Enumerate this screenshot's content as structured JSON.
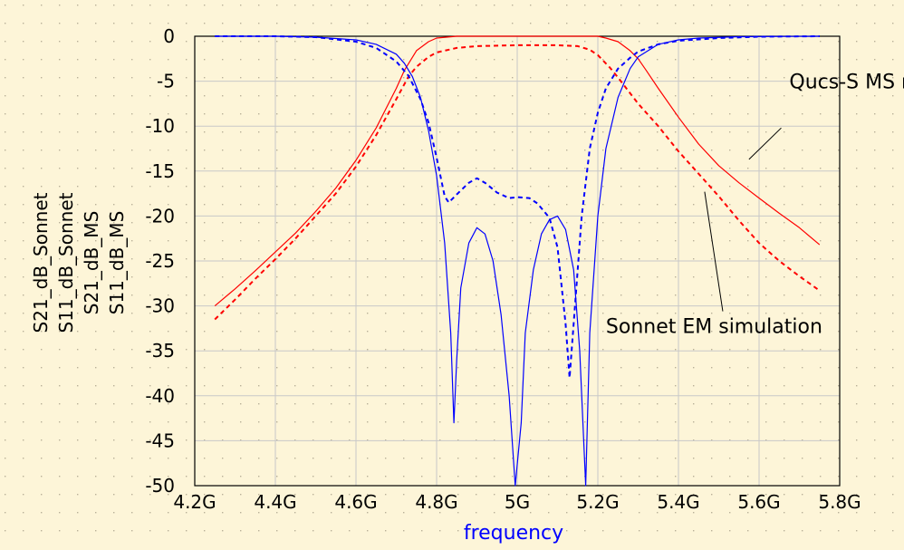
{
  "chart_data": {
    "type": "line",
    "title": "",
    "xlabel": "frequency",
    "ylabels": [
      {
        "text": "S21_dB_Sonnet",
        "color": "#ff0000"
      },
      {
        "text": "S11_dB_Sonnet",
        "color": "#0000ff"
      },
      {
        "text": "S21_dB_MS",
        "color": "#ff0000"
      },
      {
        "text": "S11_dB_MS",
        "color": "#0000ff"
      }
    ],
    "xlim": [
      4.2,
      5.8
    ],
    "ylim": [
      -50,
      0
    ],
    "grid": true,
    "background": "#fdf5d8",
    "x_ticks": [
      {
        "value": 4.2,
        "label": "4.2G"
      },
      {
        "value": 4.4,
        "label": "4.4G"
      },
      {
        "value": 4.6,
        "label": "4.6G"
      },
      {
        "value": 4.8,
        "label": "4.8G"
      },
      {
        "value": 5.0,
        "label": "5G"
      },
      {
        "value": 5.2,
        "label": "5.2G"
      },
      {
        "value": 5.4,
        "label": "5.4G"
      },
      {
        "value": 5.6,
        "label": "5.6G"
      },
      {
        "value": 5.8,
        "label": "5.8G"
      }
    ],
    "y_ticks": [
      {
        "value": 0,
        "label": "0"
      },
      {
        "value": -5,
        "label": "-5"
      },
      {
        "value": -10,
        "label": "-10"
      },
      {
        "value": -15,
        "label": "-15"
      },
      {
        "value": -20,
        "label": "-20"
      },
      {
        "value": -25,
        "label": "-25"
      },
      {
        "value": -30,
        "label": "-30"
      },
      {
        "value": -35,
        "label": "-35"
      },
      {
        "value": -40,
        "label": "-40"
      },
      {
        "value": -45,
        "label": "-45"
      },
      {
        "value": -50,
        "label": "-50"
      }
    ],
    "series": [
      {
        "name": "S21_dB_MS",
        "color": "#ff0000",
        "dashed": false,
        "points": [
          [
            4.25,
            -30.0
          ],
          [
            4.3,
            -28.1
          ],
          [
            4.35,
            -26.1
          ],
          [
            4.4,
            -24.0
          ],
          [
            4.45,
            -21.9
          ],
          [
            4.5,
            -19.5
          ],
          [
            4.55,
            -16.9
          ],
          [
            4.6,
            -13.8
          ],
          [
            4.65,
            -10.2
          ],
          [
            4.7,
            -5.8
          ],
          [
            4.72,
            -3.8
          ],
          [
            4.75,
            -1.6
          ],
          [
            4.78,
            -0.6
          ],
          [
            4.8,
            -0.2
          ],
          [
            4.85,
            0.0
          ],
          [
            4.95,
            0.0
          ],
          [
            5.05,
            0.0
          ],
          [
            5.15,
            0.0
          ],
          [
            5.2,
            0.0
          ],
          [
            5.22,
            -0.2
          ],
          [
            5.25,
            -0.6
          ],
          [
            5.28,
            -1.6
          ],
          [
            5.3,
            -2.5
          ],
          [
            5.32,
            -3.8
          ],
          [
            5.35,
            -5.8
          ],
          [
            5.4,
            -9.0
          ],
          [
            5.45,
            -12.0
          ],
          [
            5.5,
            -14.4
          ],
          [
            5.55,
            -16.3
          ],
          [
            5.6,
            -18.0
          ],
          [
            5.65,
            -19.7
          ],
          [
            5.7,
            -21.3
          ],
          [
            5.75,
            -23.2
          ]
        ]
      },
      {
        "name": "S21_dB_Sonnet",
        "color": "#ff0000",
        "dashed": true,
        "points": [
          [
            4.25,
            -31.5
          ],
          [
            4.3,
            -29.3
          ],
          [
            4.35,
            -27.0
          ],
          [
            4.4,
            -24.8
          ],
          [
            4.45,
            -22.5
          ],
          [
            4.5,
            -20.0
          ],
          [
            4.55,
            -17.5
          ],
          [
            4.6,
            -14.5
          ],
          [
            4.65,
            -11.0
          ],
          [
            4.7,
            -7.0
          ],
          [
            4.73,
            -4.5
          ],
          [
            4.75,
            -3.4
          ],
          [
            4.78,
            -2.3
          ],
          [
            4.8,
            -1.8
          ],
          [
            4.85,
            -1.3
          ],
          [
            4.9,
            -1.1
          ],
          [
            5.0,
            -1.0
          ],
          [
            5.1,
            -1.0
          ],
          [
            5.15,
            -1.1
          ],
          [
            5.18,
            -1.5
          ],
          [
            5.2,
            -2.1
          ],
          [
            5.23,
            -3.5
          ],
          [
            5.25,
            -4.6
          ],
          [
            5.3,
            -7.5
          ],
          [
            5.35,
            -10.0
          ],
          [
            5.4,
            -12.8
          ],
          [
            5.45,
            -15.3
          ],
          [
            5.5,
            -17.8
          ],
          [
            5.55,
            -20.5
          ],
          [
            5.6,
            -23.0
          ],
          [
            5.65,
            -25.0
          ],
          [
            5.7,
            -26.7
          ],
          [
            5.75,
            -28.3
          ]
        ]
      },
      {
        "name": "S11_dB_MS",
        "color": "#0000ff",
        "dashed": false,
        "points": [
          [
            4.25,
            0.0
          ],
          [
            4.4,
            0.0
          ],
          [
            4.5,
            -0.1
          ],
          [
            4.6,
            -0.4
          ],
          [
            4.65,
            -0.9
          ],
          [
            4.7,
            -2.0
          ],
          [
            4.72,
            -3.0
          ],
          [
            4.74,
            -4.5
          ],
          [
            4.76,
            -6.8
          ],
          [
            4.78,
            -10.5
          ],
          [
            4.8,
            -15.5
          ],
          [
            4.82,
            -23.0
          ],
          [
            4.835,
            -33.0
          ],
          [
            4.843,
            -43.0
          ],
          [
            4.85,
            -36.0
          ],
          [
            4.86,
            -28.0
          ],
          [
            4.88,
            -23.0
          ],
          [
            4.9,
            -21.3
          ],
          [
            4.92,
            -22.0
          ],
          [
            4.94,
            -25.0
          ],
          [
            4.96,
            -31.0
          ],
          [
            4.98,
            -40.0
          ],
          [
            4.995,
            -50.0
          ],
          [
            5.01,
            -43.0
          ],
          [
            5.02,
            -33.0
          ],
          [
            5.04,
            -26.0
          ],
          [
            5.06,
            -22.0
          ],
          [
            5.08,
            -20.4
          ],
          [
            5.1,
            -20.0
          ],
          [
            5.12,
            -21.5
          ],
          [
            5.14,
            -26.0
          ],
          [
            5.155,
            -35.0
          ],
          [
            5.17,
            -50.0
          ],
          [
            5.18,
            -33.0
          ],
          [
            5.2,
            -20.0
          ],
          [
            5.22,
            -12.5
          ],
          [
            5.25,
            -6.8
          ],
          [
            5.28,
            -3.6
          ],
          [
            5.3,
            -2.3
          ],
          [
            5.35,
            -0.9
          ],
          [
            5.4,
            -0.4
          ],
          [
            5.45,
            -0.2
          ],
          [
            5.55,
            -0.05
          ],
          [
            5.75,
            0.0
          ]
        ]
      },
      {
        "name": "S11_dB_Sonnet",
        "color": "#0000ff",
        "dashed": true,
        "points": [
          [
            4.25,
            0.0
          ],
          [
            4.4,
            0.0
          ],
          [
            4.5,
            -0.1
          ],
          [
            4.6,
            -0.6
          ],
          [
            4.65,
            -1.3
          ],
          [
            4.7,
            -2.8
          ],
          [
            4.73,
            -4.4
          ],
          [
            4.76,
            -7.0
          ],
          [
            4.78,
            -9.6
          ],
          [
            4.8,
            -13.5
          ],
          [
            4.82,
            -17.8
          ],
          [
            4.83,
            -18.5
          ],
          [
            4.85,
            -17.6
          ],
          [
            4.88,
            -16.3
          ],
          [
            4.9,
            -15.8
          ],
          [
            4.92,
            -16.3
          ],
          [
            4.95,
            -17.4
          ],
          [
            4.98,
            -18.0
          ],
          [
            5.0,
            -17.9
          ],
          [
            5.03,
            -18.0
          ],
          [
            5.05,
            -18.6
          ],
          [
            5.08,
            -20.2
          ],
          [
            5.1,
            -23.5
          ],
          [
            5.12,
            -32.0
          ],
          [
            5.13,
            -38.0
          ],
          [
            5.14,
            -32.0
          ],
          [
            5.16,
            -20.0
          ],
          [
            5.18,
            -12.5
          ],
          [
            5.2,
            -8.5
          ],
          [
            5.22,
            -5.8
          ],
          [
            5.25,
            -3.6
          ],
          [
            5.28,
            -2.4
          ],
          [
            5.3,
            -1.7
          ],
          [
            5.35,
            -0.9
          ],
          [
            5.4,
            -0.5
          ],
          [
            5.5,
            -0.2
          ],
          [
            5.6,
            -0.05
          ],
          [
            5.75,
            0.0
          ]
        ]
      }
    ],
    "annotations": [
      {
        "text": "Qucs-S MS models",
        "anchor": [
          5.675,
          -5.0
        ],
        "arrow_from": [
          5.655,
          -10.2
        ],
        "arrow_to": [
          5.575,
          -13.7
        ]
      },
      {
        "text": "Sonnet EM simulation",
        "anchor": [
          5.22,
          -32.2
        ],
        "arrow_from": [
          5.51,
          -30.6
        ],
        "arrow_to": [
          5.465,
          -17.3
        ]
      }
    ]
  }
}
